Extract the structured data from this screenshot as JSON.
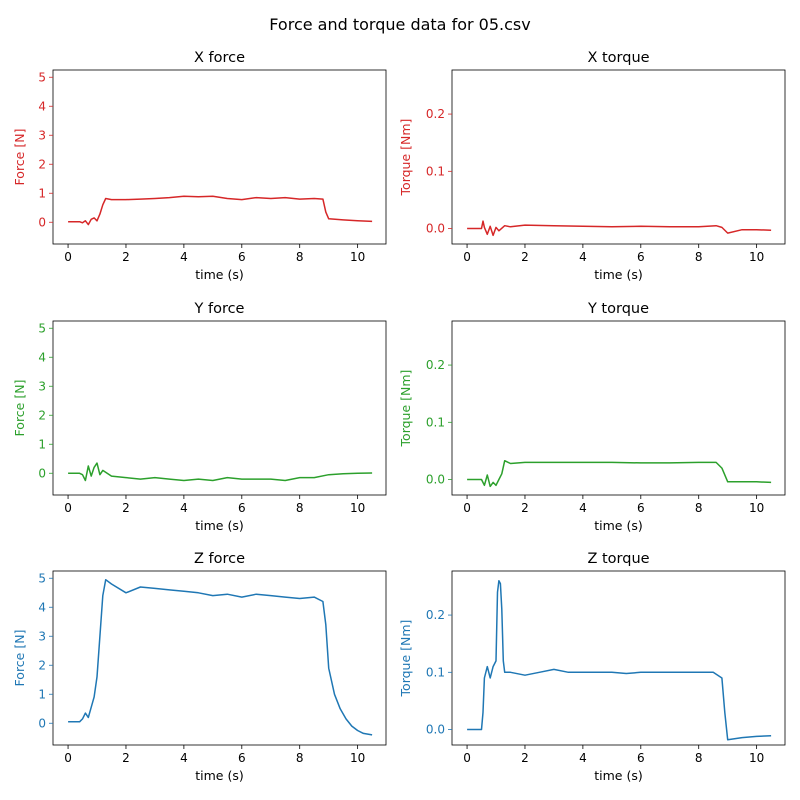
{
  "figure": {
    "suptitle": "Force and torque data for 05.csv"
  },
  "chart_data": [
    {
      "type": "line",
      "panel": "x-force",
      "title": "X force",
      "xlabel": "time (s)",
      "ylabel": "Force [N]",
      "color": "#d62728",
      "xlim": [
        -0.52,
        10.98
      ],
      "ylim": [
        -0.75,
        5.25
      ],
      "xticks": [
        0,
        2,
        4,
        6,
        8,
        10
      ],
      "yticks": [
        0,
        1,
        2,
        3,
        4,
        5
      ],
      "series": [
        {
          "x": [
            0,
            0.4,
            0.5,
            0.6,
            0.7,
            0.8,
            0.9,
            1.0,
            1.1,
            1.2,
            1.3,
            1.5,
            2,
            2.5,
            3,
            3.5,
            4,
            4.5,
            5,
            5.5,
            6,
            6.5,
            7,
            7.5,
            8,
            8.5,
            8.8,
            8.9,
            9,
            9.5,
            10,
            10.5
          ],
          "y": [
            0.02,
            0.02,
            -0.02,
            0.05,
            -0.08,
            0.1,
            0.15,
            0.05,
            0.28,
            0.6,
            0.82,
            0.78,
            0.78,
            0.8,
            0.82,
            0.85,
            0.9,
            0.88,
            0.9,
            0.82,
            0.78,
            0.85,
            0.82,
            0.85,
            0.8,
            0.82,
            0.8,
            0.35,
            0.12,
            0.08,
            0.05,
            0.03
          ]
        }
      ]
    },
    {
      "type": "line",
      "panel": "x-torque",
      "title": "X torque",
      "xlabel": "time (s)",
      "ylabel": "Torque [Nm]",
      "color": "#d62728",
      "xlim": [
        -0.52,
        10.98
      ],
      "ylim": [
        -0.027,
        0.277
      ],
      "xticks": [
        0,
        2,
        4,
        6,
        8,
        10
      ],
      "yticks": [
        0.0,
        0.1,
        0.2
      ],
      "ytick_labels": [
        "0.0",
        "0.1",
        "0.2"
      ],
      "series": [
        {
          "x": [
            0,
            0.5,
            0.55,
            0.6,
            0.7,
            0.8,
            0.9,
            1.0,
            1.1,
            1.3,
            1.5,
            2,
            3,
            4,
            5,
            6,
            7,
            8,
            8.6,
            8.8,
            9,
            9.5,
            10,
            10.5
          ],
          "y": [
            0,
            0,
            0.013,
            0.002,
            -0.01,
            0.004,
            -0.012,
            0.002,
            -0.004,
            0.005,
            0.003,
            0.006,
            0.005,
            0.004,
            0.003,
            0.004,
            0.003,
            0.003,
            0.005,
            0.002,
            -0.008,
            -0.002,
            -0.002,
            -0.003
          ]
        }
      ]
    },
    {
      "type": "line",
      "panel": "y-force",
      "title": "Y force",
      "xlabel": "time (s)",
      "ylabel": "Force [N]",
      "color": "#2ca02c",
      "xlim": [
        -0.52,
        10.98
      ],
      "ylim": [
        -0.75,
        5.25
      ],
      "xticks": [
        0,
        2,
        4,
        6,
        8,
        10
      ],
      "yticks": [
        0,
        1,
        2,
        3,
        4,
        5
      ],
      "series": [
        {
          "x": [
            0,
            0.4,
            0.5,
            0.6,
            0.7,
            0.8,
            0.9,
            1.0,
            1.1,
            1.2,
            1.5,
            2,
            2.5,
            3,
            3.5,
            4,
            4.5,
            5,
            5.5,
            6,
            6.5,
            7,
            7.5,
            8,
            8.5,
            9,
            9.5,
            10,
            10.5
          ],
          "y": [
            0,
            0,
            -0.05,
            -0.25,
            0.25,
            -0.1,
            0.2,
            0.35,
            -0.05,
            0.1,
            -0.1,
            -0.15,
            -0.2,
            -0.15,
            -0.2,
            -0.25,
            -0.2,
            -0.25,
            -0.15,
            -0.2,
            -0.2,
            -0.2,
            -0.25,
            -0.15,
            -0.15,
            -0.05,
            -0.02,
            0,
            0.01
          ]
        }
      ]
    },
    {
      "type": "line",
      "panel": "y-torque",
      "title": "Y torque",
      "xlabel": "time (s)",
      "ylabel": "Torque [Nm]",
      "color": "#2ca02c",
      "xlim": [
        -0.52,
        10.98
      ],
      "ylim": [
        -0.027,
        0.277
      ],
      "xticks": [
        0,
        2,
        4,
        6,
        8,
        10
      ],
      "yticks": [
        0.0,
        0.1,
        0.2
      ],
      "ytick_labels": [
        "0.0",
        "0.1",
        "0.2"
      ],
      "series": [
        {
          "x": [
            0,
            0.5,
            0.6,
            0.7,
            0.8,
            0.9,
            1.0,
            1.1,
            1.2,
            1.3,
            1.5,
            2,
            3,
            4,
            5,
            6,
            7,
            8,
            8.6,
            8.8,
            9,
            9.5,
            10,
            10.5
          ],
          "y": [
            0,
            0,
            -0.01,
            0.008,
            -0.012,
            -0.005,
            -0.01,
            0.0,
            0.01,
            0.033,
            0.028,
            0.03,
            0.03,
            0.03,
            0.03,
            0.029,
            0.029,
            0.03,
            0.03,
            0.02,
            -0.004,
            -0.004,
            -0.004,
            -0.005
          ]
        }
      ]
    },
    {
      "type": "line",
      "panel": "z-force",
      "title": "Z force",
      "xlabel": "time (s)",
      "ylabel": "Force [N]",
      "color": "#1f77b4",
      "xlim": [
        -0.52,
        10.98
      ],
      "ylim": [
        -0.75,
        5.25
      ],
      "xticks": [
        0,
        2,
        4,
        6,
        8,
        10
      ],
      "yticks": [
        0,
        1,
        2,
        3,
        4,
        5
      ],
      "series": [
        {
          "x": [
            0,
            0.4,
            0.5,
            0.6,
            0.7,
            0.8,
            0.9,
            1.0,
            1.1,
            1.2,
            1.3,
            1.5,
            2,
            2.5,
            3,
            3.5,
            4,
            4.5,
            5,
            5.5,
            6,
            6.5,
            7,
            7.5,
            8,
            8.5,
            8.8,
            8.9,
            9,
            9.2,
            9.4,
            9.6,
            9.8,
            10,
            10.2,
            10.5
          ],
          "y": [
            0.05,
            0.05,
            0.15,
            0.35,
            0.2,
            0.55,
            0.9,
            1.6,
            3.0,
            4.4,
            4.95,
            4.8,
            4.5,
            4.7,
            4.65,
            4.6,
            4.55,
            4.5,
            4.4,
            4.45,
            4.35,
            4.45,
            4.4,
            4.35,
            4.3,
            4.35,
            4.2,
            3.4,
            1.9,
            1.0,
            0.5,
            0.15,
            -0.1,
            -0.25,
            -0.35,
            -0.4
          ]
        }
      ]
    },
    {
      "type": "line",
      "panel": "z-torque",
      "title": "Z torque",
      "xlabel": "time (s)",
      "ylabel": "Torque [Nm]",
      "color": "#1f77b4",
      "xlim": [
        -0.52,
        10.98
      ],
      "ylim": [
        -0.027,
        0.277
      ],
      "xticks": [
        0,
        2,
        4,
        6,
        8,
        10
      ],
      "yticks": [
        0.0,
        0.1,
        0.2
      ],
      "ytick_labels": [
        "0.0",
        "0.1",
        "0.2"
      ],
      "series": [
        {
          "x": [
            0,
            0.5,
            0.55,
            0.6,
            0.7,
            0.8,
            0.9,
            1.0,
            1.05,
            1.1,
            1.15,
            1.2,
            1.25,
            1.3,
            1.5,
            2,
            2.5,
            3,
            3.5,
            4,
            4.5,
            5,
            5.5,
            6,
            6.5,
            7,
            7.5,
            8,
            8.5,
            8.8,
            8.9,
            9,
            9.5,
            10,
            10.5
          ],
          "y": [
            0,
            0,
            0.03,
            0.09,
            0.11,
            0.09,
            0.11,
            0.12,
            0.24,
            0.26,
            0.255,
            0.21,
            0.12,
            0.1,
            0.1,
            0.095,
            0.1,
            0.105,
            0.1,
            0.1,
            0.1,
            0.1,
            0.098,
            0.1,
            0.1,
            0.1,
            0.1,
            0.1,
            0.1,
            0.09,
            0.03,
            -0.018,
            -0.014,
            -0.012,
            -0.011
          ]
        }
      ]
    }
  ]
}
